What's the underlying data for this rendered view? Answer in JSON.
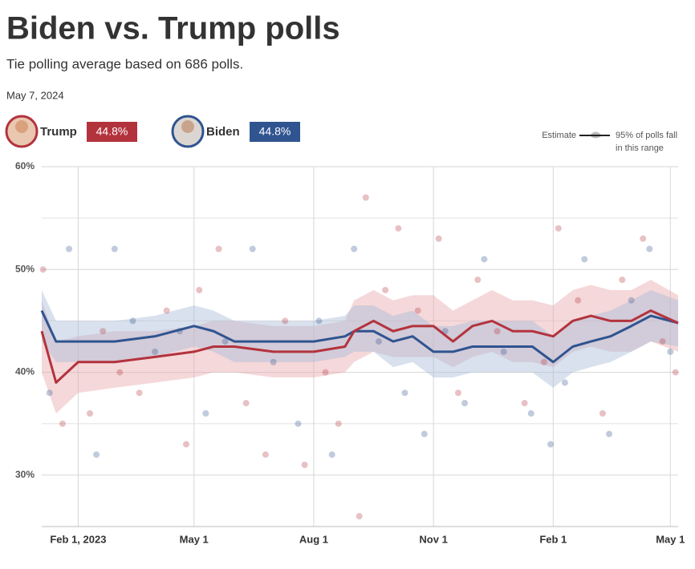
{
  "chart_data": {
    "type": "line",
    "title": "Biden vs. Trump polls",
    "subtitle": "Tie polling average based on 686 polls.",
    "date": "May 7, 2024",
    "legend_note": {
      "line": "Estimate",
      "band": [
        "95% of polls fall",
        "in this range"
      ]
    },
    "xlim": [
      "2023-01-04",
      "2024-05-07"
    ],
    "xticks": [
      {
        "value": "2023-02-01",
        "label": "Feb 1, 2023"
      },
      {
        "value": "2023-05-01",
        "label": "May 1"
      },
      {
        "value": "2023-08-01",
        "label": "Aug 1"
      },
      {
        "value": "2023-11-01",
        "label": "Nov 1"
      },
      {
        "value": "2024-02-01",
        "label": "Feb 1"
      },
      {
        "value": "2024-05-01",
        "label": "May 1"
      }
    ],
    "ylim": [
      25,
      60
    ],
    "yticks": [
      {
        "value": 60,
        "label": "60%"
      },
      {
        "value": 50,
        "label": "50%"
      },
      {
        "value": 40,
        "label": "40%"
      },
      {
        "value": 30,
        "label": "30%"
      }
    ],
    "y_minor_ticks": [
      55,
      45,
      35
    ],
    "grid": true,
    "x": [
      "2023-01-04",
      "2023-01-15",
      "2023-02-01",
      "2023-03-01",
      "2023-04-01",
      "2023-05-01",
      "2023-05-16",
      "2023-06-01",
      "2023-07-01",
      "2023-08-01",
      "2023-08-25",
      "2023-09-01",
      "2023-09-16",
      "2023-10-01",
      "2023-10-16",
      "2023-11-01",
      "2023-11-16",
      "2023-12-01",
      "2023-12-16",
      "2024-01-01",
      "2024-01-16",
      "2024-02-01",
      "2024-02-16",
      "2024-03-01",
      "2024-03-16",
      "2024-04-01",
      "2024-04-16",
      "2024-05-07"
    ],
    "series": [
      {
        "name": "Trump",
        "color": "#b3333d",
        "band_color": "#e8a9ae",
        "latest": {
          "value": 44.8,
          "label": "44.8%"
        },
        "values": [
          44,
          39,
          41,
          41,
          41.5,
          42,
          42.5,
          42.5,
          42,
          42,
          42.5,
          44,
          45,
          44,
          44.5,
          44.5,
          43,
          44.5,
          45,
          44,
          44,
          43.5,
          45,
          45.5,
          45,
          45,
          46,
          44.8
        ],
        "lower": [
          40,
          36,
          38,
          38.5,
          39,
          39.5,
          40,
          40,
          39.5,
          39.5,
          40,
          41,
          42,
          41.5,
          41.5,
          41.5,
          40.5,
          41.5,
          42,
          41,
          41,
          40.5,
          42,
          42.5,
          42,
          42,
          43,
          42
        ],
        "upper": [
          47,
          43,
          43.5,
          44,
          44,
          44.5,
          45,
          45,
          44.5,
          44.5,
          45,
          47,
          48,
          47,
          47.5,
          47.5,
          46,
          47,
          48,
          47,
          47,
          46.5,
          48,
          48.5,
          48,
          48,
          49,
          47.5
        ],
        "polls": {
          "x": [
            "2023-01-05",
            "2023-01-20",
            "2023-02-10",
            "2023-02-20",
            "2023-03-05",
            "2023-03-20",
            "2023-04-10",
            "2023-04-25",
            "2023-05-05",
            "2023-05-20",
            "2023-06-10",
            "2023-06-25",
            "2023-07-10",
            "2023-07-25",
            "2023-08-10",
            "2023-08-20",
            "2023-09-05",
            "2023-09-10",
            "2023-09-25",
            "2023-10-05",
            "2023-10-20",
            "2023-11-05",
            "2023-11-20",
            "2023-12-05",
            "2023-12-20",
            "2024-01-10",
            "2024-01-25",
            "2024-02-05",
            "2024-02-20",
            "2024-03-10",
            "2024-03-25",
            "2024-04-10",
            "2024-04-25",
            "2024-05-05"
          ],
          "values": [
            50,
            35,
            36,
            44,
            40,
            38,
            46,
            33,
            48,
            52,
            37,
            32,
            45,
            31,
            40,
            35,
            26,
            57,
            48,
            54,
            46,
            53,
            38,
            49,
            44,
            37,
            41,
            54,
            47,
            36,
            49,
            53,
            43,
            40
          ]
        }
      },
      {
        "name": "Biden",
        "color": "#2f5490",
        "band_color": "#a9bcd6",
        "latest": {
          "value": 44.8,
          "label": "44.8%"
        },
        "values": [
          46,
          43,
          43,
          43,
          43.5,
          44.5,
          44,
          43,
          43,
          43,
          43.5,
          44,
          44,
          43,
          43.5,
          42,
          42,
          42.5,
          42.5,
          42.5,
          42.5,
          41,
          42.5,
          43,
          43.5,
          44.5,
          45.5,
          44.8
        ],
        "lower": [
          43,
          41,
          41,
          41,
          41.5,
          42.5,
          42,
          41,
          41,
          41,
          41.5,
          42,
          42,
          40.5,
          41,
          39.5,
          39.5,
          40,
          40,
          40,
          40,
          38.5,
          40,
          40.5,
          41,
          42,
          43,
          42.5
        ],
        "upper": [
          48,
          45,
          45,
          45,
          45.5,
          46.5,
          46,
          45,
          45,
          45,
          45.5,
          46.5,
          46.5,
          45.5,
          46,
          44.5,
          44.5,
          45,
          45,
          45,
          45,
          43.5,
          45,
          45.5,
          46,
          47,
          48,
          47
        ],
        "polls": {
          "x": [
            "2023-01-10",
            "2023-01-25",
            "2023-02-15",
            "2023-03-01",
            "2023-03-15",
            "2023-04-01",
            "2023-04-20",
            "2023-05-10",
            "2023-05-25",
            "2023-06-15",
            "2023-07-01",
            "2023-07-20",
            "2023-08-05",
            "2023-08-15",
            "2023-09-01",
            "2023-09-20",
            "2023-10-10",
            "2023-10-25",
            "2023-11-10",
            "2023-11-25",
            "2023-12-10",
            "2023-12-25",
            "2024-01-15",
            "2024-01-30",
            "2024-02-10",
            "2024-02-25",
            "2024-03-15",
            "2024-04-01",
            "2024-04-15",
            "2024-05-01"
          ],
          "values": [
            38,
            52,
            32,
            52,
            45,
            42,
            44,
            36,
            43,
            52,
            41,
            35,
            45,
            32,
            52,
            43,
            38,
            34,
            44,
            37,
            51,
            42,
            36,
            33,
            39,
            51,
            34,
            47,
            52,
            42
          ]
        }
      }
    ]
  }
}
